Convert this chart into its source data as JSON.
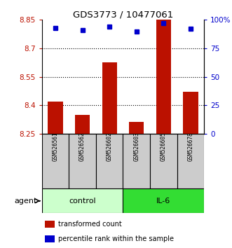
{
  "title": "GDS3773 / 10477061",
  "samples": [
    "GSM526561",
    "GSM526562",
    "GSM526602",
    "GSM526603",
    "GSM526605",
    "GSM526678"
  ],
  "bar_values": [
    8.42,
    8.35,
    8.625,
    8.315,
    8.85,
    8.47
  ],
  "percentile_values": [
    93,
    91,
    94,
    90,
    97,
    92
  ],
  "bar_color": "#bb1100",
  "dot_color": "#0000cc",
  "ylim_left": [
    8.25,
    8.85
  ],
  "ylim_right": [
    0,
    100
  ],
  "yticks_left": [
    8.25,
    8.4,
    8.55,
    8.7,
    8.85
  ],
  "yticks_right": [
    0,
    25,
    50,
    75,
    100
  ],
  "ytick_labels_left": [
    "8.25",
    "8.4",
    "8.55",
    "8.7",
    "8.85"
  ],
  "ytick_labels_right": [
    "0",
    "25",
    "50",
    "75",
    "100%"
  ],
  "groups": [
    {
      "label": "control",
      "indices": [
        0,
        1,
        2
      ],
      "color": "#ccffcc"
    },
    {
      "label": "IL-6",
      "indices": [
        3,
        4,
        5
      ],
      "color": "#33dd33"
    }
  ],
  "agent_label": "agent",
  "legend_items": [
    {
      "label": "transformed count",
      "color": "#bb1100"
    },
    {
      "label": "percentile rank within the sample",
      "color": "#0000cc"
    }
  ],
  "bar_width": 0.55,
  "background_color": "#ffffff"
}
